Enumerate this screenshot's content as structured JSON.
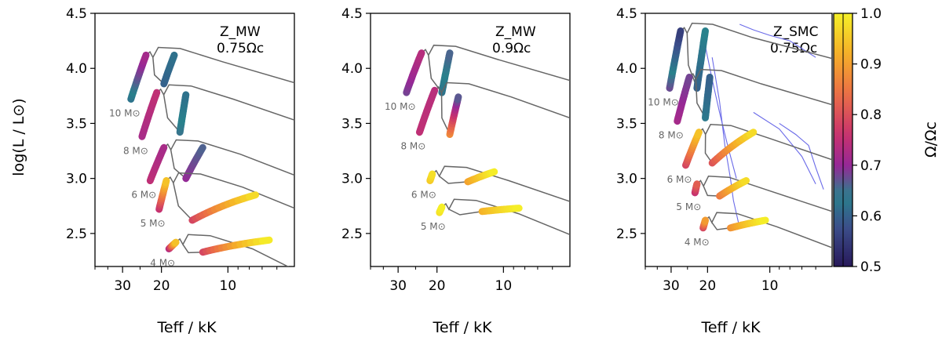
{
  "chart_data": {
    "type": "scatter",
    "figure_kind": "Hertzsprung-Russell diagram with rotating stellar tracks",
    "y_axis_label": "log(L / L⊙)",
    "x_axis_label": "Teff / kK",
    "ylim": [
      2.2,
      4.5
    ],
    "xlim_log_kK": [
      40,
      5
    ],
    "y_ticks": [
      "2.5",
      "3.0",
      "3.5",
      "4.0",
      "4.5"
    ],
    "x_ticks": [
      "30",
      "20",
      "10"
    ],
    "colorbar": {
      "label": "Ω/Ωc",
      "range": [
        0.5,
        1.0
      ],
      "ticks": [
        "0.5",
        "0.6",
        "0.7",
        "0.8",
        "0.9",
        "1.0"
      ],
      "colormap": "plasma-viridis composite"
    },
    "panels": [
      {
        "metallicity": "Z_MW",
        "rotation": "0.75Ωc",
        "masses": [
          {
            "label": "10 M⊙",
            "ms_teff": [
              27.5,
              23.5
            ],
            "ms_logL": [
              3.72,
              4.12
            ],
            "post_teff": [
              19.5,
              17.5
            ],
            "post_logL": [
              3.86,
              4.12
            ],
            "om_ms": [
              0.62,
              0.72
            ],
            "om_post": [
              0.6,
              0.62
            ]
          },
          {
            "label": "8 M⊙",
            "ms_teff": [
              24.5,
              21.0
            ],
            "ms_logL": [
              3.38,
              3.78
            ],
            "post_teff": [
              16.5,
              15.5
            ],
            "post_logL": [
              3.42,
              3.76
            ],
            "om_ms": [
              0.72,
              0.75
            ],
            "om_post": [
              0.65,
              0.62
            ]
          },
          {
            "label": "6 M⊙",
            "ms_teff": [
              22.5,
              19.5
            ],
            "ms_logL": [
              2.98,
              3.28
            ],
            "post_teff": [
              15.5,
              13.0
            ],
            "post_logL": [
              3.0,
              3.28
            ],
            "om_ms": [
              0.75,
              0.72
            ],
            "om_post": [
              0.7,
              0.66
            ]
          },
          {
            "label": "5 M⊙",
            "ms_teff": [
              20.5,
              19.0
            ],
            "ms_logL": [
              2.72,
              2.98
            ],
            "post_teff": [
              14.5,
              7.5
            ],
            "post_logL": [
              2.62,
              2.85
            ],
            "om_ms": [
              0.75,
              0.95
            ],
            "om_post": [
              0.78,
              0.98
            ]
          },
          {
            "label": "4 M⊙",
            "ms_teff": [
              18.5,
              17.2
            ],
            "ms_logL": [
              2.36,
              2.42
            ],
            "post_teff": [
              13.0,
              6.5
            ],
            "post_logL": [
              2.33,
              2.44
            ],
            "om_ms": [
              0.72,
              0.95
            ],
            "om_post": [
              0.78,
              1.0
            ]
          }
        ]
      },
      {
        "metallicity": "Z_MW",
        "rotation": "0.9Ωc",
        "masses": [
          {
            "label": "10 M⊙",
            "ms_teff": [
              27.5,
              23.5
            ],
            "ms_logL": [
              3.78,
              4.14
            ],
            "post_teff": [
              19.0,
              17.5
            ],
            "post_logL": [
              3.78,
              4.14
            ],
            "om_ms": [
              0.68,
              0.74
            ],
            "om_post": [
              0.62,
              0.66
            ]
          },
          {
            "label": "8 M⊙",
            "ms_teff": [
              24.0,
              20.5
            ],
            "ms_logL": [
              3.42,
              3.8
            ],
            "post_teff": [
              17.5,
              16.0
            ],
            "post_logL": [
              3.4,
              3.74
            ],
            "om_ms": [
              0.75,
              0.74
            ],
            "om_post": [
              0.88,
              0.66
            ]
          },
          {
            "label": "6 M⊙",
            "ms_teff": [
              21.5,
              21.0
            ],
            "ms_logL": [
              2.98,
              3.04
            ],
            "post_teff": [
              14.5,
              11.0
            ],
            "post_logL": [
              2.97,
              3.06
            ],
            "om_ms": [
              0.95,
              0.98
            ],
            "om_post": [
              0.9,
              1.0
            ]
          },
          {
            "label": "5 M⊙",
            "ms_teff": [
              19.5,
              19.0
            ],
            "ms_logL": [
              2.69,
              2.74
            ],
            "post_teff": [
              12.5,
              8.5
            ],
            "post_logL": [
              2.7,
              2.73
            ],
            "om_ms": [
              0.98,
              1.0
            ],
            "om_post": [
              0.92,
              1.0
            ]
          }
        ]
      },
      {
        "metallicity": "Z_SMC",
        "rotation": "0.75Ωc",
        "masses": [
          {
            "label": "10 M⊙",
            "ms_teff": [
              30.5,
              27.0
            ],
            "ms_logL": [
              3.82,
              4.34
            ],
            "post_teff": [
              22.5,
              20.5
            ],
            "post_logL": [
              3.82,
              4.34
            ],
            "om_ms": [
              0.68,
              0.55
            ],
            "om_post": [
              0.6,
              0.64
            ]
          },
          {
            "label": "8 M⊙",
            "ms_teff": [
              28.0,
              24.5
            ],
            "ms_logL": [
              3.52,
              3.92
            ],
            "post_teff": [
              20.5,
              19.5
            ],
            "post_logL": [
              3.55,
              3.92
            ],
            "om_ms": [
              0.72,
              0.68
            ],
            "om_post": [
              0.63,
              0.6
            ]
          },
          {
            "label": "6 M⊙",
            "ms_teff": [
              25.5,
              22.0
            ],
            "ms_logL": [
              3.12,
              3.42
            ],
            "post_teff": [
              19.0,
              12.0
            ],
            "post_logL": [
              3.14,
              3.42
            ],
            "om_ms": [
              0.78,
              0.95
            ],
            "om_post": [
              0.8,
              0.98
            ]
          },
          {
            "label": "5 M⊙",
            "ms_teff": [
              23.0,
              22.5
            ],
            "ms_logL": [
              2.87,
              2.95
            ],
            "post_teff": [
              17.5,
              13.0
            ],
            "post_logL": [
              2.84,
              2.98
            ],
            "om_ms": [
              0.75,
              0.82
            ],
            "om_post": [
              0.85,
              0.98
            ]
          },
          {
            "label": "4 M⊙",
            "ms_teff": [
              21.0,
              20.5
            ],
            "ms_logL": [
              2.55,
              2.62
            ],
            "post_teff": [
              15.5,
              10.5
            ],
            "post_logL": [
              2.55,
              2.62
            ],
            "om_ms": [
              0.78,
              0.9
            ],
            "om_post": [
              0.88,
              1.0
            ]
          }
        ]
      }
    ]
  }
}
